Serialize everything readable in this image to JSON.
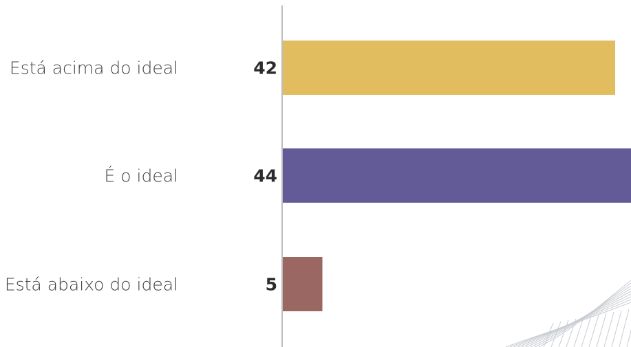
{
  "chart_data": {
    "type": "bar",
    "orientation": "horizontal",
    "categories": [
      "Está acima do ideal",
      "É o ideal",
      "Está abaixo do ideal"
    ],
    "values": [
      42,
      44,
      5
    ],
    "value_labels": [
      "42",
      "44",
      "5"
    ],
    "colors": [
      "#e1bd5f",
      "#625b97",
      "#9b6762"
    ],
    "axis_line_color": "#bdbdbd",
    "xlim": [
      0,
      44
    ],
    "grid": false,
    "legend": "none"
  }
}
